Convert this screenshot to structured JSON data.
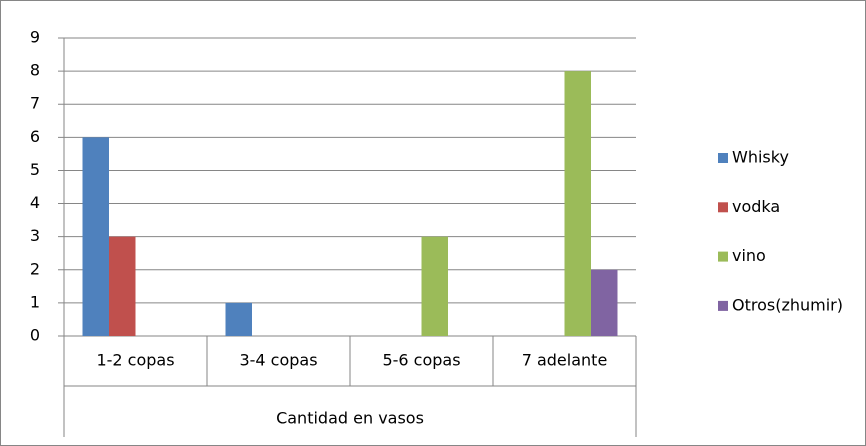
{
  "chart_data": {
    "type": "bar",
    "x_label": "Cantidad en vasos",
    "categories": [
      "1-2 copas",
      "3-4 copas",
      "5-6 copas",
      "7 adelante"
    ],
    "series": [
      {
        "name": "Whisky",
        "color": "#4f81bd",
        "values": [
          6,
          1,
          0,
          0
        ]
      },
      {
        "name": "vodka",
        "color": "#c0504d",
        "values": [
          3,
          0,
          0,
          0
        ]
      },
      {
        "name": "vino",
        "color": "#9bbb59",
        "values": [
          0,
          0,
          3,
          8
        ]
      },
      {
        "name": "Otros(zhumir)",
        "color": "#8064a2",
        "values": [
          0,
          0,
          0,
          2
        ]
      }
    ],
    "ylim": [
      0,
      9
    ],
    "yticks": [
      0,
      1,
      2,
      3,
      4,
      5,
      6,
      7,
      8,
      9
    ],
    "grid": true,
    "legend": "right"
  }
}
